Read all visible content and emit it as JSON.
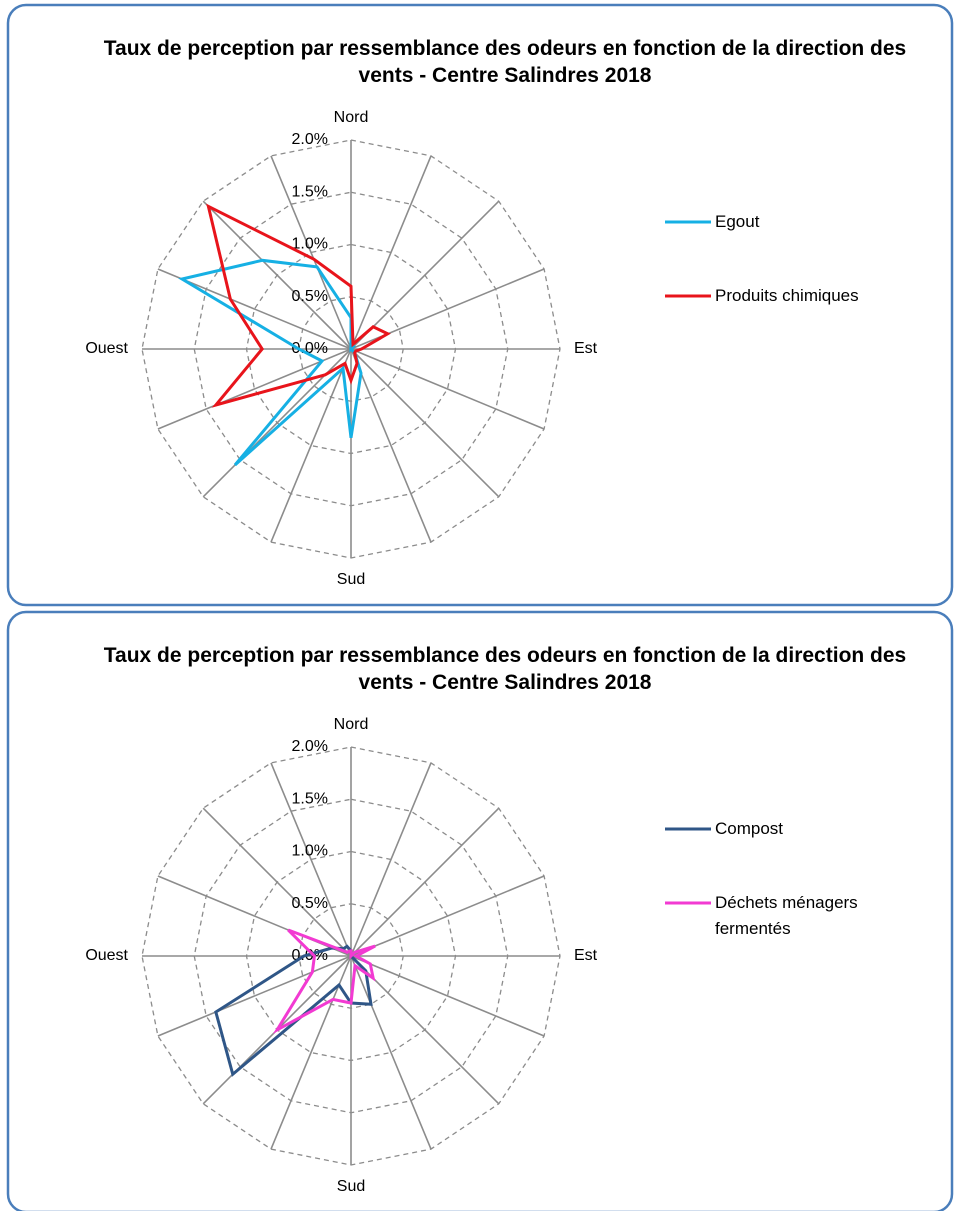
{
  "chart_data": [
    {
      "type": "radar",
      "title": "Taux de perception par ressemblance des odeurs en fonction de la direction des vents - Centre Salindres 2018",
      "categories": [
        "Nord",
        null,
        null,
        null,
        "Est",
        null,
        null,
        null,
        "Sud",
        null,
        null,
        null,
        "Ouest",
        null,
        null,
        null
      ],
      "rlim": [
        0,
        2
      ],
      "rticks": [
        {
          "value": 0,
          "label": "0.0%"
        },
        {
          "value": 0.5,
          "label": "0.5%"
        },
        {
          "value": 1,
          "label": "1.0%"
        },
        {
          "value": 1.5,
          "label": "1.5%"
        },
        {
          "value": 2,
          "label": "2.0%"
        }
      ],
      "grid": true,
      "legend": "right",
      "series": [
        {
          "name": "Egout",
          "color": "#16b0e4",
          "values": [
            0.3,
            0,
            0.05,
            0,
            0,
            0,
            0.05,
            0.25,
            0.85,
            0.2,
            1.57,
            0.3,
            0.5,
            1.75,
            1.2,
            0.85
          ]
        },
        {
          "name": "Produits chimiques",
          "color": "#e8141b",
          "values": [
            0.6,
            0.05,
            0.3,
            0.38,
            0.1,
            0.05,
            0.05,
            0.15,
            0.3,
            0.15,
            0.35,
            1.4,
            0.85,
            1.25,
            1.93,
            0.93
          ]
        }
      ]
    },
    {
      "type": "radar",
      "title": "Taux de perception par ressemblance des odeurs en fonction de la direction des vents - Centre Salindres 2018",
      "categories": [
        "Nord",
        null,
        null,
        null,
        "Est",
        null,
        null,
        null,
        "Sud",
        null,
        null,
        null,
        "Ouest",
        null,
        null,
        null
      ],
      "rlim": [
        0,
        2
      ],
      "rticks": [
        {
          "value": 0,
          "label": "0.0%"
        },
        {
          "value": 0.5,
          "label": "0.5%"
        },
        {
          "value": 1,
          "label": "1.0%"
        },
        {
          "value": 1.5,
          "label": "1.5%"
        },
        {
          "value": 2,
          "label": "2.0%"
        }
      ],
      "grid": true,
      "legend": "right",
      "series": [
        {
          "name": "Compost",
          "color": "#2f5687",
          "values": [
            0.05,
            0,
            0,
            0,
            0,
            0,
            0.2,
            0.5,
            0.45,
            0.3,
            1.6,
            1.4,
            0.45,
            0.2,
            0.1,
            0.1
          ]
        },
        {
          "name": "Déchets ménagers fermentés",
          "color": "#f23ad2",
          "values": [
            0.05,
            0,
            0.05,
            0.25,
            0.05,
            0.2,
            0.3,
            0.1,
            0.45,
            0.45,
            1.0,
            0.4,
            0.35,
            0.65,
            0.05,
            0.05
          ]
        }
      ]
    }
  ]
}
